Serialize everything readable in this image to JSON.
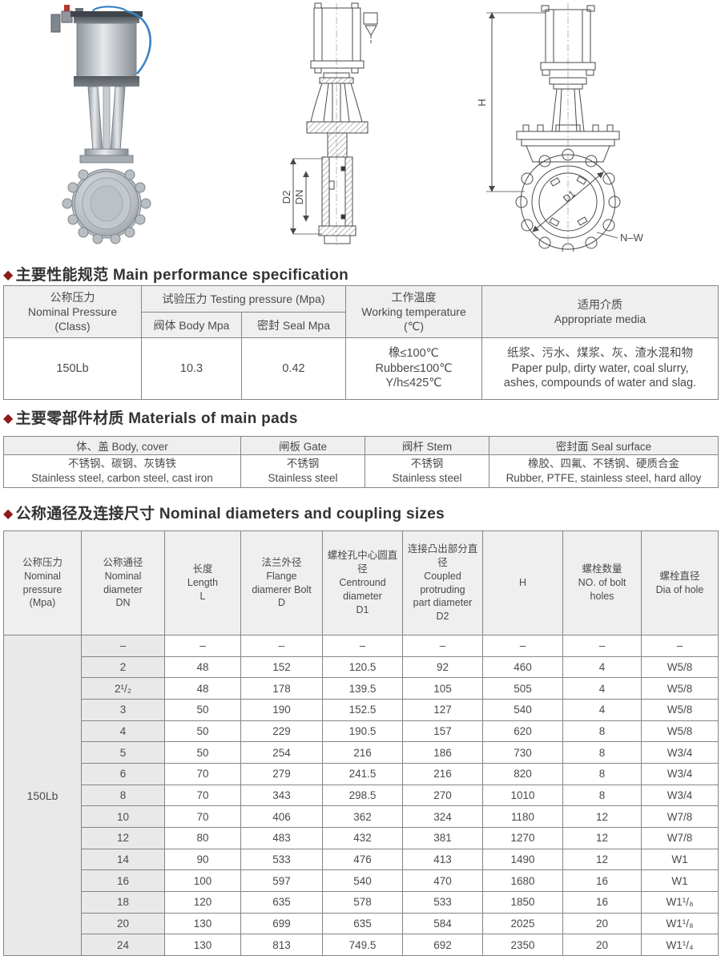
{
  "page": {
    "accent_color": "#8c1b1b",
    "border_color": "#858585",
    "header_bg": "#efefef",
    "shaded_col_bg": "#e9e9e9"
  },
  "figures": {
    "section_drawing": {
      "dim_d2": "D2",
      "dim_dn": "DN"
    },
    "front_drawing": {
      "dim_h": "H",
      "dim_d1": "D1",
      "bolt_label": "N–W"
    }
  },
  "perf": {
    "bullet": "◆",
    "title": "主要性能规范 Main performance specification",
    "headers": {
      "np_zh": "公称压力",
      "np_en": "Nominal Pressure",
      "np_sub": "(Class)",
      "testing": "试验压力 Testing pressure (Mpa)",
      "body": "阀体 Body Mpa",
      "seal": "密封 Seal Mpa",
      "wt_zh": "工作温度",
      "wt_en": "Working temperature",
      "wt_unit": "(℃)",
      "media_zh": "适用介质",
      "media_en": "Appropriate media"
    },
    "row": {
      "class": "150Lb",
      "body_mpa": "10.3",
      "seal_mpa": "0.42",
      "temp_lines": [
        "橡≤100℃",
        "Rubber≤100℃",
        "Y/h≤425℃"
      ],
      "media_lines": [
        "纸浆、污水、煤浆、灰、渣水混和物",
        "Paper pulp, dirty water, coal slurry,",
        "ashes, compounds of water and slag."
      ]
    }
  },
  "materials": {
    "bullet": "◆",
    "title": "主要零部件材质 Materials of main pads",
    "headers": [
      "体、盖 Body, cover",
      "闸板 Gate",
      "阀杆 Stem",
      "密封面 Seal surface"
    ],
    "values_zh": [
      "不锈钢、碳钢、灰铸铁",
      "不锈钢",
      "不锈钢",
      "橡胶、四氟、不锈钢、硬质合金"
    ],
    "values_en": [
      "Stainless steel, carbon steel, cast iron",
      "Stainless steel",
      "Stainless steel",
      "Rubber, PTFE, stainless steel, hard alloy"
    ]
  },
  "dims": {
    "bullet": "◆",
    "title": "公称通径及连接尺寸 Nominal diameters and coupling sizes",
    "col_headers": [
      [
        "公称压力",
        "Nominal",
        "pressure",
        "(Mpa)"
      ],
      [
        "公称通径",
        "Nominal",
        "diameter",
        "DN"
      ],
      [
        "长度",
        "Length",
        "L"
      ],
      [
        "法兰外径",
        "Flange",
        "diamerer Bolt",
        "D"
      ],
      [
        "螺栓孔中心圆直径",
        "Centround",
        "diameter",
        "D1"
      ],
      [
        "连接凸出部分直径",
        "Coupled",
        "protruding",
        "part diameter",
        "D2"
      ],
      [
        "H"
      ],
      [
        "螺栓数量",
        "NO. of bolt",
        "holes"
      ],
      [
        "螺栓直径",
        "Dia of hole"
      ]
    ],
    "pressure_class": "150Lb",
    "rows": [
      [
        "–",
        "–",
        "–",
        "–",
        "–",
        "–",
        "–",
        "–"
      ],
      [
        "2",
        "48",
        "152",
        "120.5",
        "92",
        "460",
        "4",
        "W5/8"
      ],
      [
        "2¹/₂",
        "48",
        "178",
        "139.5",
        "105",
        "505",
        "4",
        "W5/8"
      ],
      [
        "3",
        "50",
        "190",
        "152.5",
        "127",
        "540",
        "4",
        "W5/8"
      ],
      [
        "4",
        "50",
        "229",
        "190.5",
        "157",
        "620",
        "8",
        "W5/8"
      ],
      [
        "5",
        "50",
        "254",
        "216",
        "186",
        "730",
        "8",
        "W3/4"
      ],
      [
        "6",
        "70",
        "279",
        "241.5",
        "216",
        "820",
        "8",
        "W3/4"
      ],
      [
        "8",
        "70",
        "343",
        "298.5",
        "270",
        "1010",
        "8",
        "W3/4"
      ],
      [
        "10",
        "70",
        "406",
        "362",
        "324",
        "1180",
        "12",
        "W7/8"
      ],
      [
        "12",
        "80",
        "483",
        "432",
        "381",
        "1270",
        "12",
        "W7/8"
      ],
      [
        "14",
        "90",
        "533",
        "476",
        "413",
        "1490",
        "12",
        "W1"
      ],
      [
        "16",
        "100",
        "597",
        "540",
        "470",
        "1680",
        "16",
        "W1"
      ],
      [
        "18",
        "120",
        "635",
        "578",
        "533",
        "1850",
        "16",
        "W1¹/₈"
      ],
      [
        "20",
        "130",
        "699",
        "635",
        "584",
        "2025",
        "20",
        "W1¹/₈"
      ],
      [
        "24",
        "130",
        "813",
        "749.5",
        "692",
        "2350",
        "20",
        "W1¹/₄"
      ]
    ]
  }
}
